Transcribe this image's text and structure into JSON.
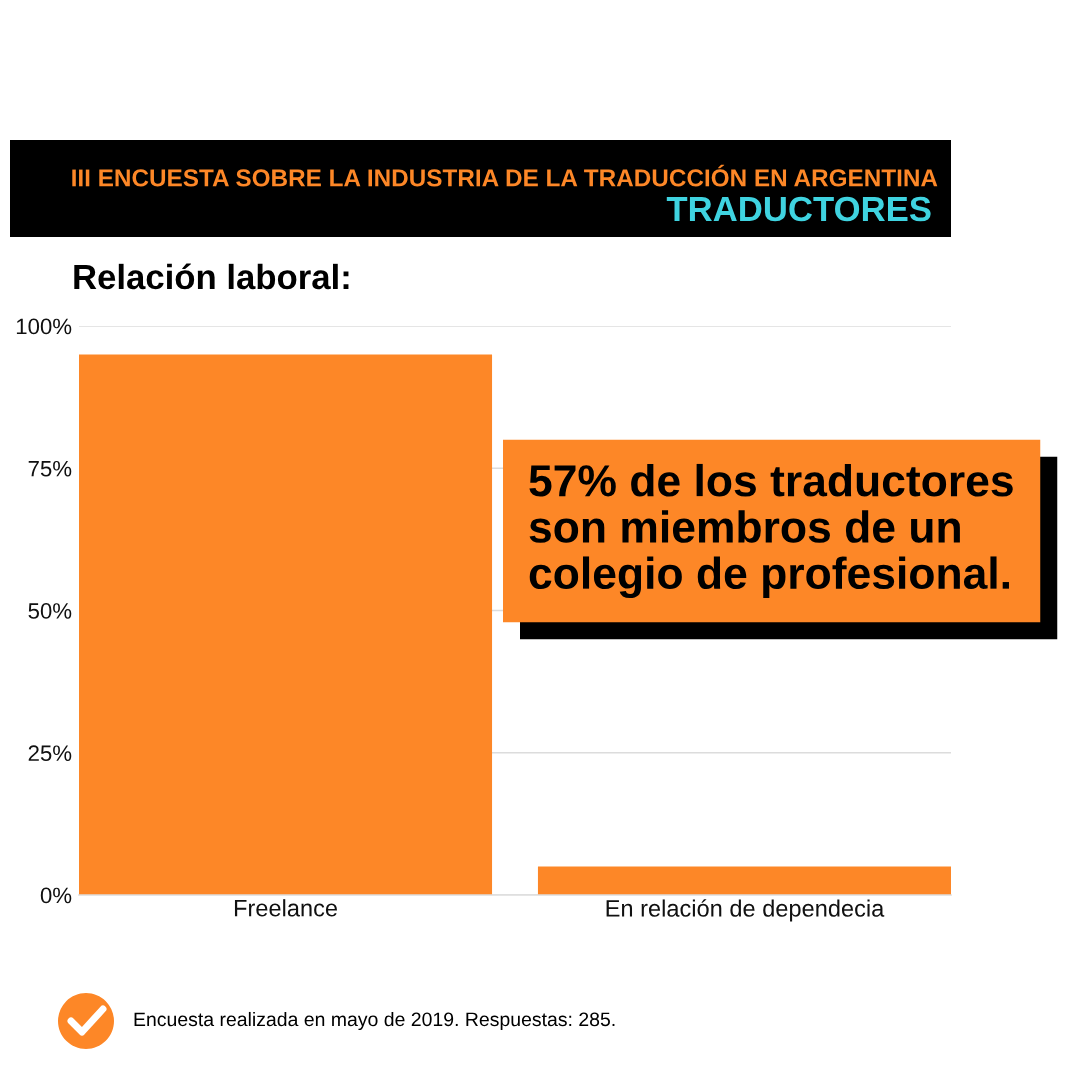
{
  "chart_data": {
    "type": "bar",
    "title": "III ENCUESTA SOBRE LA INDUSTRIA DE LA TRADUCCIÓN EN ARGENTINA",
    "subtitle": "TRADUCTORES",
    "annotations": [
      "Relación laboral:",
      "57% de los traductores\nson miembros de un\ncolegio de profesional.",
      "Encuesta realizada en mayo de 2019. Respuestas: 285."
    ],
    "categories": [
      "Freelance",
      "En relación de dependecia"
    ],
    "values": [
      95,
      5
    ],
    "color": "#fd8727",
    "ylim": [
      0,
      100
    ],
    "yticks": [
      {
        "value": 0,
        "label": "0%"
      },
      {
        "value": 25,
        "label": "25%"
      },
      {
        "value": 50,
        "label": "50%"
      },
      {
        "value": 75,
        "label": "75%"
      },
      {
        "value": 100,
        "label": "100%"
      }
    ],
    "grid": "y"
  }
}
